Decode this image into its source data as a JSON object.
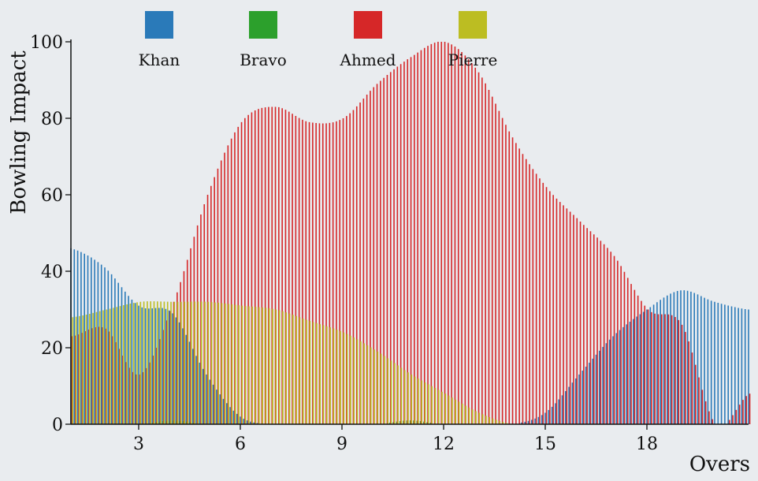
{
  "chart_data": {
    "type": "bar",
    "xlabel": "Overs",
    "ylabel": "Bowling Impact",
    "xlim": [
      1,
      21
    ],
    "ylim": [
      0,
      100
    ],
    "x_ticks": [
      3,
      6,
      9,
      12,
      15,
      18
    ],
    "y_ticks": [
      0,
      20,
      40,
      60,
      80,
      100
    ],
    "legend_position": "top",
    "x": [
      1.0,
      2.0,
      3.0,
      4.0,
      5.0,
      6.0,
      7.0,
      8.0,
      9.0,
      10.0,
      11.0,
      12.0,
      13.0,
      14.0,
      15.0,
      16.0,
      17.0,
      18.0,
      19.0,
      20.0,
      21.0
    ],
    "series": [
      {
        "name": "Khan",
        "color": "#2a7ab9",
        "values": [
          46,
          41,
          31,
          29,
          13,
          2,
          0,
          0,
          0,
          0,
          0,
          0,
          0,
          0,
          3,
          13,
          23,
          30,
          35,
          32,
          30
        ]
      },
      {
        "name": "Bravo",
        "color": "#2ca02c",
        "values": [
          0,
          0,
          0,
          1,
          0,
          0,
          0,
          0,
          0,
          0,
          1,
          0,
          0,
          0,
          0,
          0,
          0,
          0,
          0,
          0,
          0
        ]
      },
      {
        "name": "Ahmed",
        "color": "#d62728",
        "values": [
          23,
          25,
          13,
          32,
          60,
          79,
          83,
          79,
          80,
          89,
          96,
          100,
          92,
          75,
          62,
          53,
          44,
          30,
          26,
          0,
          8
        ]
      },
      {
        "name": "Pierre",
        "color": "#bcbd22",
        "values": [
          28,
          30,
          32,
          32,
          32,
          31,
          30,
          27,
          24,
          19,
          13,
          8,
          3,
          0,
          0,
          0,
          0,
          0,
          0,
          0,
          0
        ]
      }
    ]
  }
}
